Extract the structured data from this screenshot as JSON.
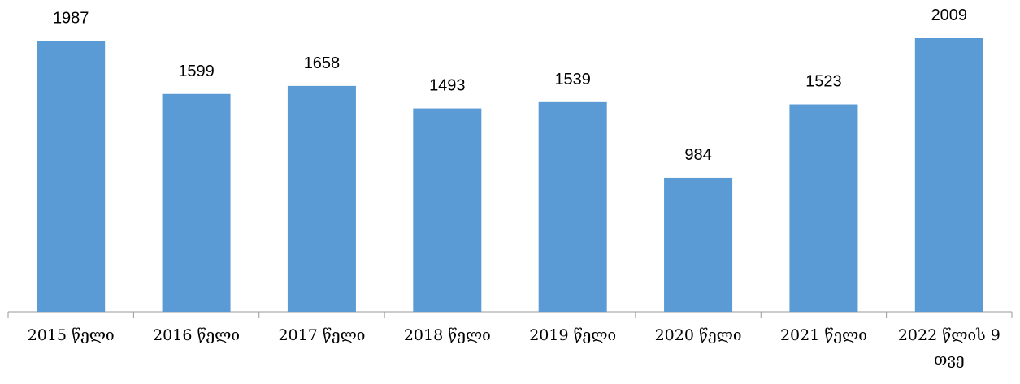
{
  "chart_data": {
    "type": "bar",
    "categories": [
      "2015 წელი",
      "2016 წელი",
      "2017 წელი",
      "2018 წელი",
      "2019 წელი",
      "2020 წელი",
      "2021 წელი",
      "2022 წლის 9 თვე"
    ],
    "values": [
      1987,
      1599,
      1658,
      1493,
      1539,
      984,
      1523,
      2009
    ],
    "color": "#5b9bd5"
  }
}
